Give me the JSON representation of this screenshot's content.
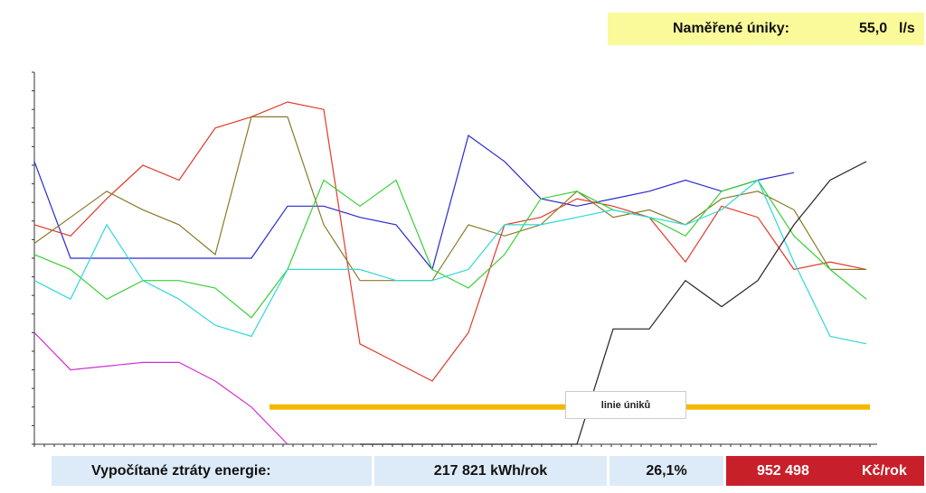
{
  "header": {
    "label": "Naměřené úniky:",
    "value": "55,0",
    "unit": "l/s"
  },
  "footer": {
    "label": "Vypočítané ztráty energie:",
    "energy": "217 821 kWh/rok",
    "percent": "26,1%",
    "cost": "952 498",
    "cost_unit": "Kč/rok"
  },
  "chart_data": {
    "type": "line",
    "ylim": [
      0,
      100
    ],
    "x": [
      0,
      1,
      2,
      3,
      4,
      5,
      6,
      7,
      8,
      9,
      10,
      11,
      12,
      13,
      14,
      15,
      16,
      17,
      18,
      19,
      20,
      21,
      22,
      23
    ],
    "annotation": "linie úniků",
    "leak_line": {
      "value": 10,
      "x_start": 6.5,
      "x_end": 23.1,
      "color": "#f5b800"
    },
    "series": [
      {
        "name": "blue",
        "color": "#2a2ad0",
        "values": [
          76,
          50,
          50,
          50,
          50,
          50,
          50,
          64,
          64,
          61,
          59,
          47,
          83,
          76,
          66,
          64,
          66,
          68,
          71,
          68,
          71,
          73,
          null,
          null
        ]
      },
      {
        "name": "red",
        "color": "#e03a2a",
        "values": [
          59,
          56,
          66,
          75,
          71,
          85,
          88,
          92,
          90,
          27,
          22,
          17,
          30,
          59,
          61,
          66,
          64,
          61,
          49,
          64,
          61,
          47,
          49,
          47
        ]
      },
      {
        "name": "olive",
        "color": "#8a7a2a",
        "values": [
          54,
          61,
          68,
          63,
          59,
          51,
          88,
          88,
          59,
          44,
          44,
          44,
          59,
          56,
          59,
          68,
          61,
          63,
          59,
          66,
          68,
          63,
          47,
          47
        ]
      },
      {
        "name": "green",
        "color": "#38d038",
        "values": [
          51,
          47,
          39,
          44,
          44,
          42,
          34,
          47,
          71,
          64,
          71,
          47,
          42,
          51,
          66,
          68,
          63,
          61,
          56,
          68,
          71,
          56,
          47,
          39
        ]
      },
      {
        "name": "cyan",
        "color": "#30d8d8",
        "values": [
          44,
          39,
          59,
          44,
          39,
          32,
          29,
          47,
          47,
          47,
          44,
          44,
          47,
          59,
          59,
          61,
          63,
          61,
          59,
          63,
          71,
          49,
          29,
          27
        ]
      },
      {
        "name": "magenta",
        "color": "#d030d0",
        "values": [
          30,
          20,
          21,
          22,
          22,
          17,
          10,
          0,
          null,
          null,
          null,
          null,
          null,
          null,
          null,
          null,
          null,
          null,
          null,
          null,
          null,
          null,
          null,
          null
        ]
      },
      {
        "name": "black",
        "color": "#222222",
        "values": [
          null,
          null,
          null,
          null,
          null,
          null,
          null,
          null,
          null,
          0,
          0,
          0,
          0,
          0,
          0,
          0,
          31,
          31,
          44,
          37,
          44,
          59,
          71,
          76
        ]
      }
    ]
  }
}
